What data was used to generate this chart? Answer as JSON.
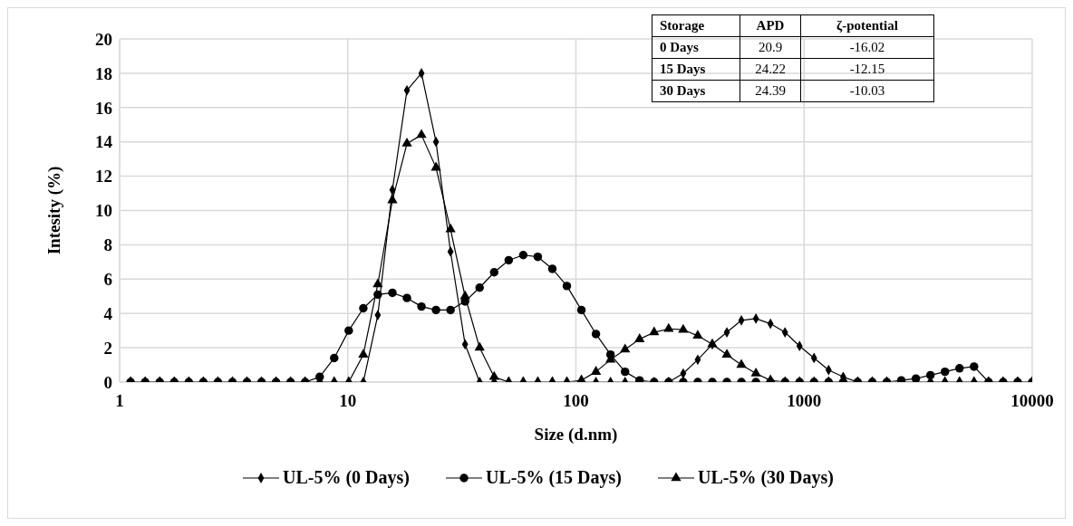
{
  "chart_data": {
    "type": "line",
    "xlabel": "Size (d.nm)",
    "ylabel": "Intesity (%)",
    "log": "x",
    "xlim": [
      1,
      10000
    ],
    "xticks": [
      1,
      10,
      100,
      1000,
      10000
    ],
    "ylim": [
      0,
      20
    ],
    "yticks": [
      0,
      2,
      4,
      6,
      8,
      10,
      12,
      14,
      16,
      18,
      20
    ],
    "grid": true,
    "legend": "bottom",
    "line_style": "solid",
    "x": [
      1.117,
      1.294,
      1.499,
      1.736,
      2.01,
      2.328,
      2.696,
      3.122,
      3.615,
      4.187,
      4.849,
      5.615,
      6.503,
      7.531,
      8.721,
      10.1,
      11.7,
      13.54,
      15.69,
      18.17,
      21.04,
      24.36,
      28.21,
      32.67,
      37.84,
      43.82,
      50.75,
      58.77,
      68.06,
      78.82,
      91.28,
      105.7,
      122.4,
      141.8,
      164.2,
      190.1,
      220.2,
      255,
      295.3,
      342,
      396.1,
      458.7,
      531.2,
      615.1,
      712.4,
      825,
      955.4,
      1106,
      1281,
      1484,
      1718,
      1990,
      2305,
      2669,
      3091,
      3580,
      4145,
      4801,
      5560,
      6439,
      7456,
      8635,
      10000
    ],
    "series": [
      {
        "name": "UL-5% (0 Days)",
        "color": "#000000",
        "marker": "diamond",
        "values": [
          0,
          0,
          0,
          0,
          0,
          0,
          0,
          0,
          0,
          0,
          0,
          0,
          0,
          0,
          0,
          0,
          0,
          3.9,
          11.2,
          17.0,
          18.0,
          14.0,
          7.6,
          2.2,
          0,
          0,
          0,
          0,
          0,
          0,
          0,
          0,
          0,
          0,
          0,
          0,
          0,
          0,
          0.5,
          1.3,
          2.2,
          2.9,
          3.6,
          3.7,
          3.4,
          2.9,
          2.1,
          1.4,
          0.7,
          0.3,
          0,
          0,
          0,
          0,
          0,
          0,
          0,
          0,
          0,
          0,
          0,
          0,
          0
        ]
      },
      {
        "name": "UL-5% (15 Days)",
        "color": "#000000",
        "marker": "circle",
        "values": [
          0,
          0,
          0,
          0,
          0,
          0,
          0,
          0,
          0,
          0,
          0,
          0,
          0,
          0.3,
          1.4,
          3.0,
          4.3,
          5.1,
          5.2,
          4.9,
          4.4,
          4.2,
          4.2,
          4.7,
          5.5,
          6.4,
          7.1,
          7.4,
          7.3,
          6.6,
          5.6,
          4.2,
          2.8,
          1.6,
          0.6,
          0.1,
          0,
          0,
          0,
          0,
          0,
          0,
          0,
          0,
          0,
          0,
          0,
          0,
          0,
          0,
          0,
          0,
          0,
          0.1,
          0.2,
          0.4,
          0.6,
          0.8,
          0.9,
          0,
          0,
          0,
          0
        ]
      },
      {
        "name": "UL-5% (30 Days)",
        "color": "#000000",
        "marker": "triangle",
        "values": [
          0,
          0,
          0,
          0,
          0,
          0,
          0,
          0,
          0,
          0,
          0,
          0,
          0,
          0,
          0,
          0,
          1.6,
          5.7,
          10.6,
          13.9,
          14.4,
          12.5,
          8.9,
          5.0,
          2.0,
          0.3,
          0,
          0,
          0,
          0,
          0,
          0.1,
          0.6,
          1.3,
          1.9,
          2.5,
          2.9,
          3.1,
          3.05,
          2.7,
          2.2,
          1.6,
          1.0,
          0.5,
          0.1,
          0,
          0,
          0,
          0,
          0,
          0,
          0,
          0,
          0,
          0,
          0,
          0,
          0,
          0,
          0,
          0,
          0,
          0
        ]
      }
    ],
    "annotations": [
      "Storage",
      "APD",
      "ζ-potential",
      "0 Days",
      "20.9",
      "-16.02",
      "15 Days",
      "24.22",
      "-12.15",
      "30 Days",
      "24.39",
      "-10.03"
    ]
  }
}
